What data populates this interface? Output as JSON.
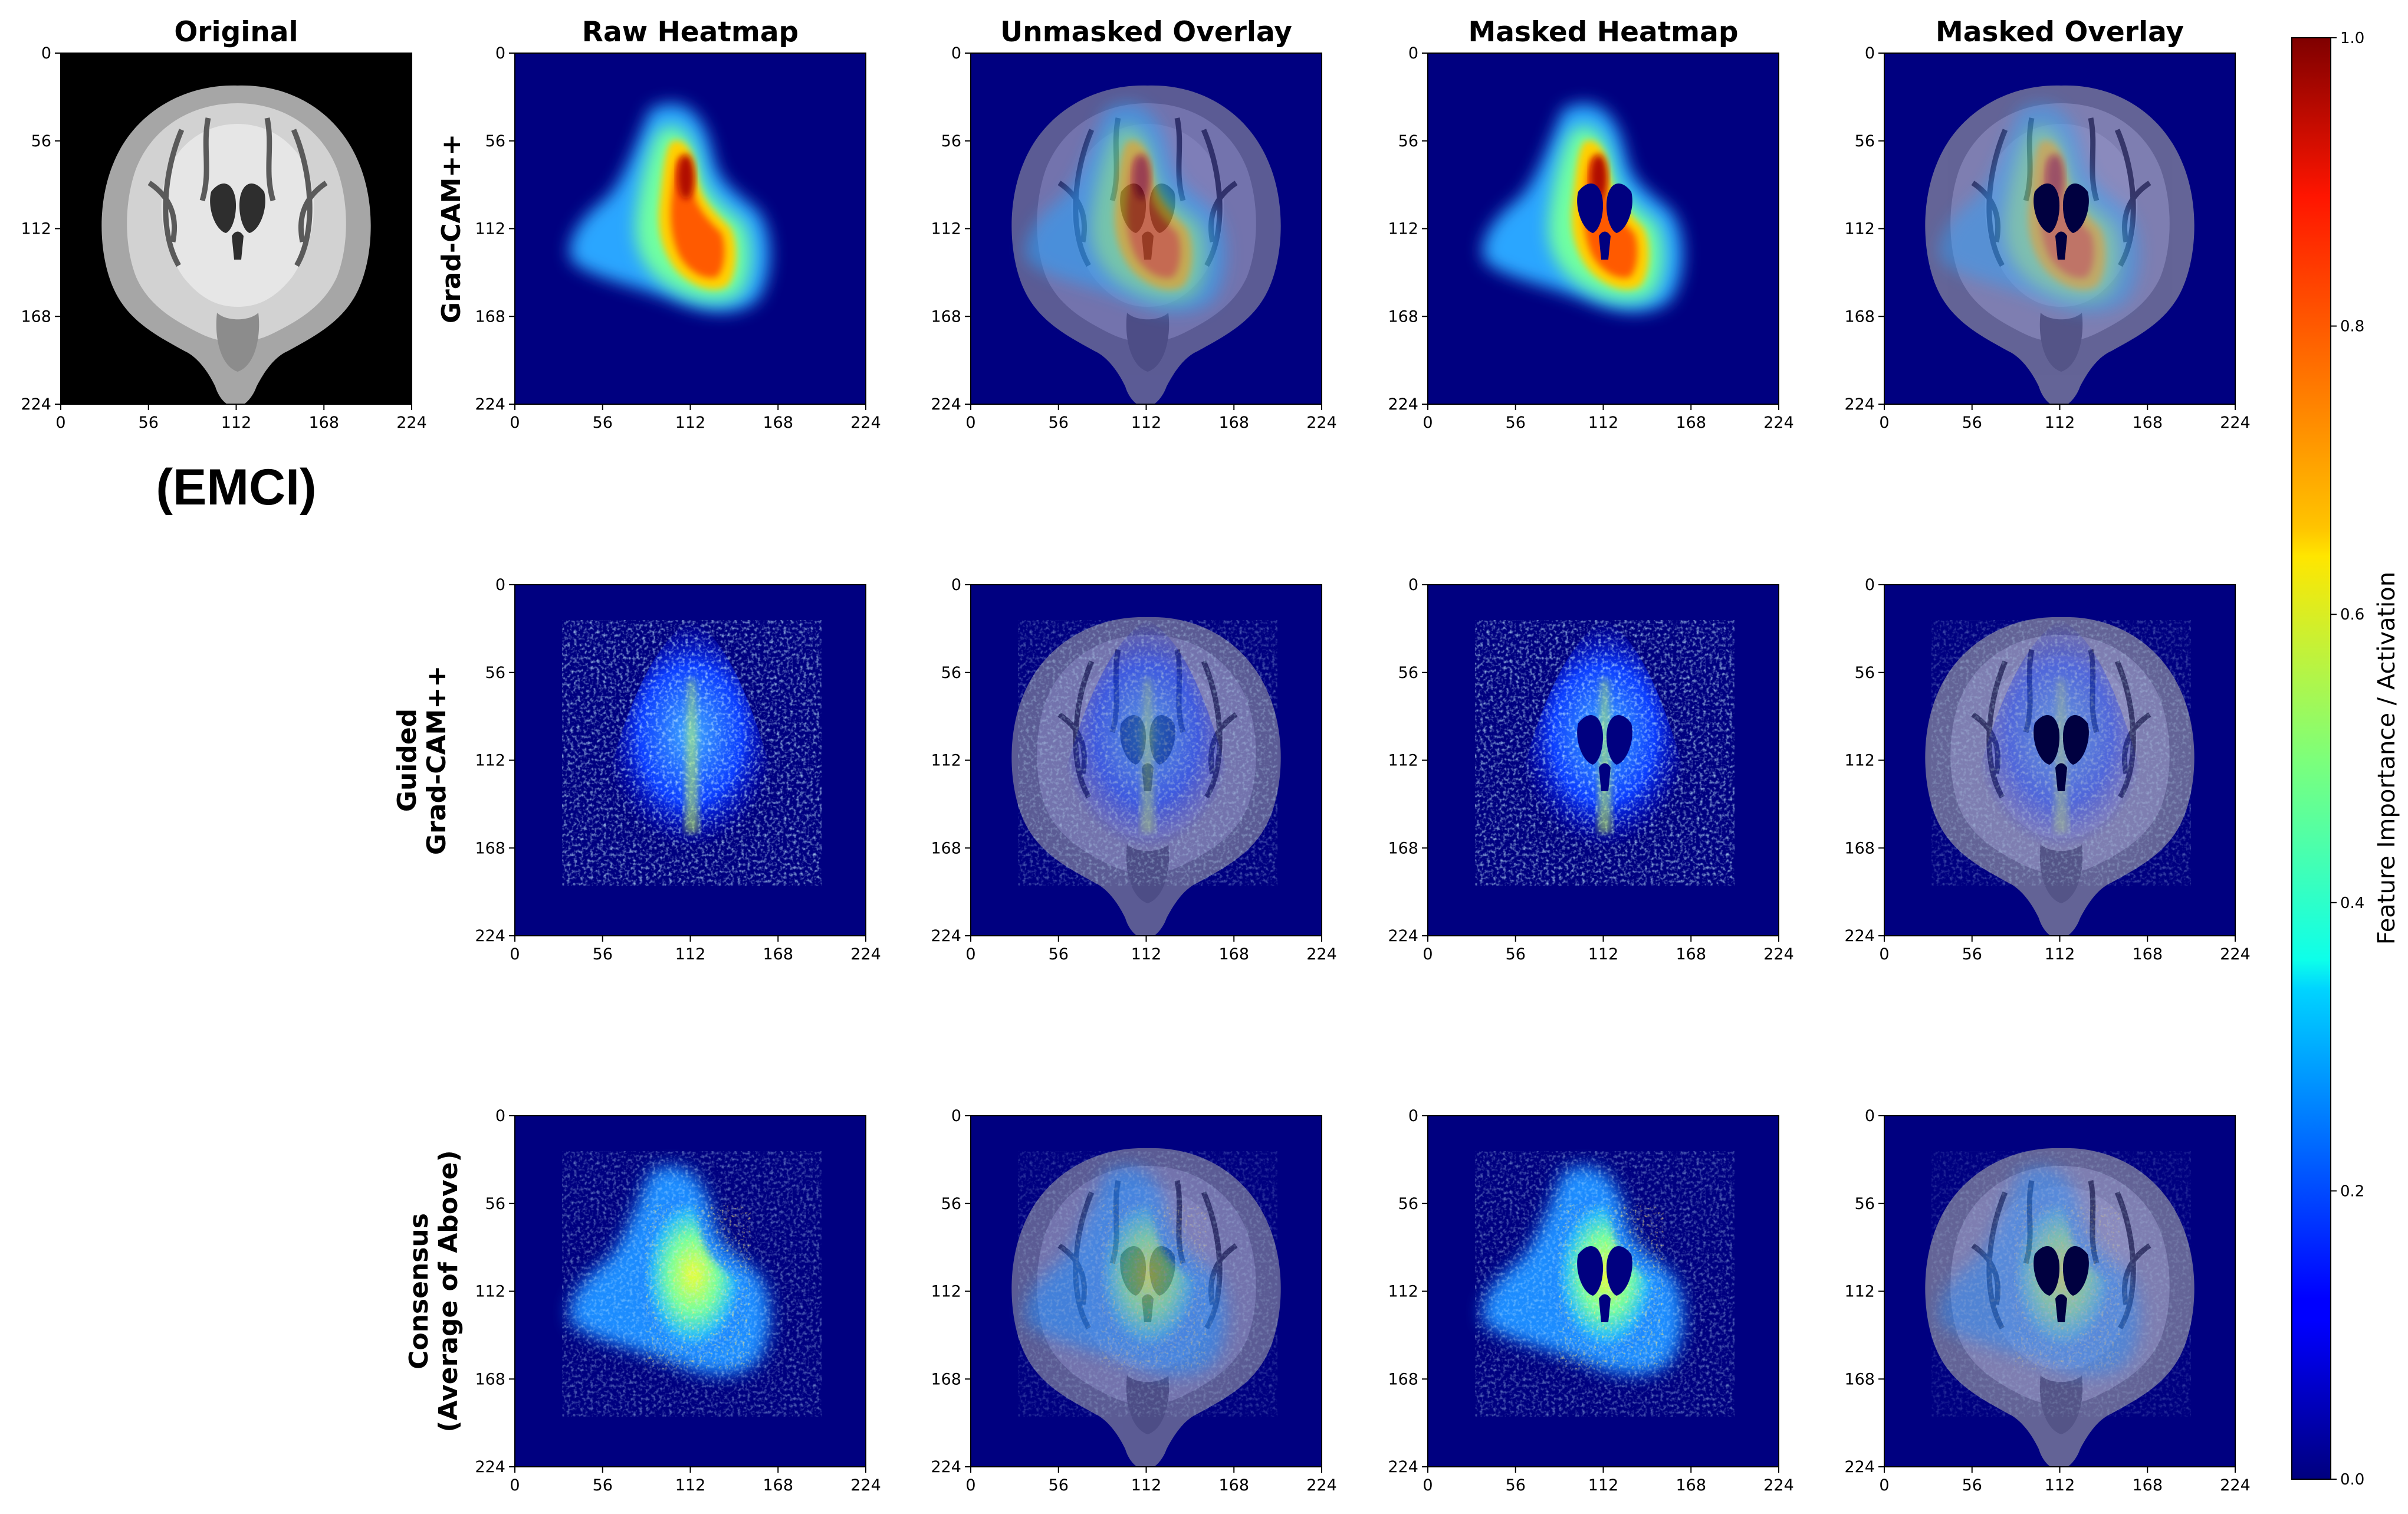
{
  "chart_data": {
    "type": "heatmap",
    "subject_label": "(EMCI)",
    "columns": [
      "Original",
      "Raw Heatmap",
      "Unmasked Overlay",
      "Masked Heatmap",
      "Masked Overlay"
    ],
    "rows": [
      {
        "label_lines": [
          "Grad-CAM++"
        ]
      },
      {
        "label_lines": [
          "Guided",
          "Grad-CAM++"
        ]
      },
      {
        "label_lines": [
          "Consensus",
          "(Average of Above)"
        ]
      }
    ],
    "xlim": [
      0,
      224
    ],
    "ylim": [
      224,
      0
    ],
    "x_ticks": [
      "0",
      "56",
      "112",
      "168",
      "224"
    ],
    "y_ticks": [
      "0",
      "56",
      "112",
      "168",
      "224"
    ],
    "colormap": "jet",
    "colorbar": {
      "label": "Feature Importance / Activation",
      "range": [
        0.0,
        1.0
      ],
      "ticks": [
        "0.0",
        "0.2",
        "0.4",
        "0.6",
        "0.8",
        "1.0"
      ]
    }
  }
}
